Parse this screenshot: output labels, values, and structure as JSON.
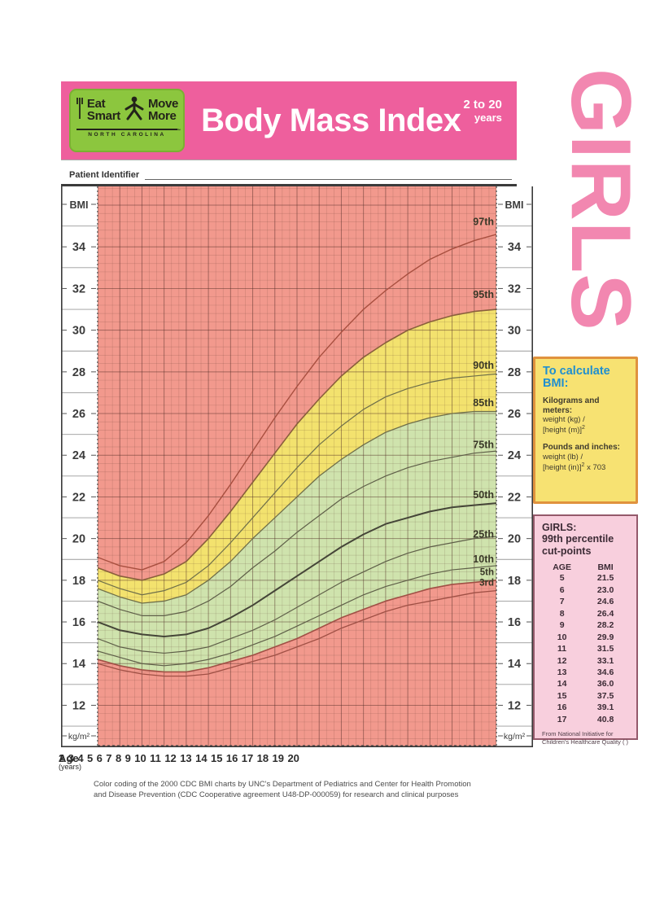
{
  "header": {
    "logo": {
      "line1_word1": "Eat",
      "line1_word2": "Smart",
      "line2_word1": "Move",
      "line2_word2": "More",
      "subtitle": "NORTH CAROLINA",
      "trademark": "™",
      "bg_color": "#8cc63e"
    },
    "title": "Body Mass Index",
    "age_range": "2 to 20",
    "age_range_unit": "years",
    "banner_color": "#ee5f9d"
  },
  "patient": {
    "label": "Patient Identifier"
  },
  "sidebar": {
    "girls_label": "GIRLS",
    "girls_color": "#f287b0",
    "calc_box": {
      "title": "To calculate BMI:",
      "metric_heading": "Kilograms and meters:",
      "metric_line1": "weight (kg) /",
      "metric_line2_base": "[height (m)]",
      "metric_exponent": "2",
      "imperial_heading": "Pounds and inches:",
      "imperial_line1": "weight (lb) /",
      "imperial_line2_base": "[height (in)]",
      "imperial_exponent": "2",
      "imperial_line2_suffix": " x 703",
      "bg_color": "#f7e272",
      "border_color": "#e0923e",
      "title_color": "#1f8fd0"
    },
    "cutpoints_box": {
      "title_line1": "GIRLS:",
      "title_line2": "99th percentile",
      "title_line3": "cut-points",
      "col_age": "AGE",
      "col_bmi": "BMI",
      "rows": [
        [
          "5",
          "21.5"
        ],
        [
          "6",
          "23.0"
        ],
        [
          "7",
          "24.6"
        ],
        [
          "8",
          "26.4"
        ],
        [
          "9",
          "28.2"
        ],
        [
          "10",
          "29.9"
        ],
        [
          "11",
          "31.5"
        ],
        [
          "12",
          "33.1"
        ],
        [
          "13",
          "34.6"
        ],
        [
          "14",
          "36.0"
        ],
        [
          "15",
          "37.5"
        ],
        [
          "16",
          "39.1"
        ],
        [
          "17",
          "40.8"
        ]
      ],
      "footnote": "From National Initiative for Children's Healthcare Quality ( )",
      "bg_color": "#f8cfdd",
      "border_color": "#945a6b"
    }
  },
  "axis": {
    "age_label": "Age",
    "age_unit_label": "(years)",
    "bmi_label_top": "BMI",
    "unit_label_bottom": "kg/m²"
  },
  "footer": {
    "line1": "Color coding of the 2000 CDC BMI charts by UNC's Department of Pediatrics and Center for Health Promotion",
    "line2": "and Disease Prevention (CDC Cooperative agreement U48-DP-000059) for research and clinical purposes"
  },
  "chart_data": {
    "type": "line",
    "x": [
      2,
      3,
      4,
      5,
      6,
      7,
      8,
      9,
      10,
      11,
      12,
      13,
      14,
      15,
      16,
      17,
      18,
      19,
      20
    ],
    "x_tick_labels": [
      "2",
      "3",
      "4",
      "5",
      "6",
      "7",
      "8",
      "9",
      "10",
      "11",
      "12",
      "13",
      "14",
      "15",
      "16",
      "17",
      "18",
      "19",
      "20"
    ],
    "y_tick_values": [
      34,
      32,
      30,
      28,
      26,
      24,
      22,
      20,
      18,
      16,
      14,
      12
    ],
    "y_tick_labels": [
      "34",
      "32",
      "30",
      "28",
      "26",
      "24",
      "22",
      "20",
      "18",
      "16",
      "14",
      "12"
    ],
    "xlim": [
      2,
      20
    ],
    "ylim": [
      10,
      36.9
    ],
    "grid": true,
    "zone_colors": {
      "above_95th": "#f2998d",
      "85th_to_95th": "#f3e26e",
      "5th_to_85th": "#cfe3ad",
      "below_5th": "#f2998d"
    },
    "grid_colors": {
      "minor": "rgba(90,55,45,0.20)",
      "major": "rgba(75,40,35,0.38)"
    },
    "axis_text_color": "#3c3c3c",
    "label_color": "#3a3828",
    "series": [
      {
        "name": "97th",
        "color": "#a84f3f",
        "width": 1.4,
        "values": [
          19.1,
          18.7,
          18.5,
          18.9,
          19.8,
          21.1,
          22.6,
          24.2,
          25.8,
          27.3,
          28.7,
          29.9,
          31.0,
          31.9,
          32.7,
          33.4,
          33.9,
          34.3,
          34.6
        ]
      },
      {
        "name": "95th",
        "color": "#8a5f3c",
        "width": 1.6,
        "values": [
          18.6,
          18.2,
          18.0,
          18.3,
          18.9,
          20.0,
          21.3,
          22.7,
          24.1,
          25.5,
          26.7,
          27.8,
          28.7,
          29.4,
          30.0,
          30.4,
          30.7,
          30.9,
          31.0
        ]
      },
      {
        "name": "90th",
        "color": "#6f6f4a",
        "width": 1.2,
        "values": [
          18.0,
          17.6,
          17.3,
          17.5,
          17.9,
          18.7,
          19.8,
          21.0,
          22.2,
          23.4,
          24.5,
          25.4,
          26.2,
          26.8,
          27.2,
          27.5,
          27.7,
          27.8,
          27.9
        ]
      },
      {
        "name": "85th",
        "color": "#6f6f4a",
        "width": 1.3,
        "values": [
          17.6,
          17.2,
          16.9,
          17.0,
          17.3,
          18.0,
          18.9,
          20.0,
          21.0,
          22.0,
          23.0,
          23.8,
          24.5,
          25.1,
          25.5,
          25.8,
          26.0,
          26.1,
          26.1
        ]
      },
      {
        "name": "75th",
        "color": "#5f5f49",
        "width": 1.2,
        "values": [
          17.0,
          16.6,
          16.3,
          16.3,
          16.5,
          17.0,
          17.7,
          18.6,
          19.4,
          20.3,
          21.1,
          21.9,
          22.5,
          23.0,
          23.4,
          23.7,
          23.9,
          24.1,
          24.2
        ]
      },
      {
        "name": "50th",
        "color": "#454538",
        "width": 2.0,
        "values": [
          16.0,
          15.6,
          15.4,
          15.3,
          15.4,
          15.7,
          16.2,
          16.8,
          17.5,
          18.2,
          18.9,
          19.6,
          20.2,
          20.7,
          21.0,
          21.3,
          21.5,
          21.6,
          21.7
        ]
      },
      {
        "name": "25th",
        "color": "#5f5f49",
        "width": 1.2,
        "values": [
          15.2,
          14.8,
          14.6,
          14.5,
          14.6,
          14.8,
          15.2,
          15.6,
          16.1,
          16.7,
          17.3,
          17.9,
          18.4,
          18.9,
          19.3,
          19.6,
          19.8,
          20.0,
          20.1
        ]
      },
      {
        "name": "10th",
        "color": "#5f5f49",
        "width": 1.2,
        "values": [
          14.6,
          14.3,
          14.0,
          13.9,
          14.0,
          14.2,
          14.5,
          14.9,
          15.3,
          15.8,
          16.3,
          16.8,
          17.3,
          17.7,
          18.0,
          18.3,
          18.5,
          18.6,
          18.7
        ]
      },
      {
        "name": "5th",
        "color": "#a05045",
        "width": 1.6,
        "values": [
          14.2,
          13.9,
          13.7,
          13.6,
          13.6,
          13.8,
          14.1,
          14.4,
          14.8,
          15.2,
          15.7,
          16.2,
          16.6,
          17.0,
          17.3,
          17.6,
          17.8,
          17.9,
          18.0
        ]
      },
      {
        "name": "3rd",
        "color": "#a05045",
        "width": 1.3,
        "values": [
          14.0,
          13.7,
          13.5,
          13.4,
          13.4,
          13.5,
          13.8,
          14.1,
          14.4,
          14.8,
          15.2,
          15.7,
          16.1,
          16.5,
          16.8,
          17.0,
          17.2,
          17.4,
          17.5
        ]
      }
    ],
    "percentile_labels": [
      {
        "text": "97th",
        "bmi": 35.2
      },
      {
        "text": "95th",
        "bmi": 31.7
      },
      {
        "text": "90th",
        "bmi": 28.3
      },
      {
        "text": "85th",
        "bmi": 26.5
      },
      {
        "text": "75th",
        "bmi": 24.5
      },
      {
        "text": "50th",
        "bmi": 22.1
      },
      {
        "text": "25th",
        "bmi": 20.2
      },
      {
        "text": "10th",
        "bmi": 19.0
      },
      {
        "text": "5th",
        "bmi": 18.4
      },
      {
        "text": "3rd",
        "bmi": 17.9
      }
    ]
  }
}
